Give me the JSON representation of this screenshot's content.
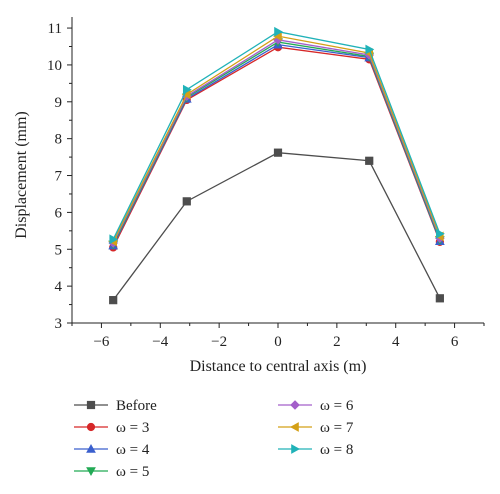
{
  "chart_data": {
    "type": "line",
    "xlabel": "Distance to central axis (m)",
    "ylabel": "Displacement (mm)",
    "xlim": [
      -7,
      7
    ],
    "ylim": [
      3,
      11.3
    ],
    "x_ticks": [
      -6,
      -4,
      -2,
      0,
      2,
      4,
      6
    ],
    "x_tick_labels": [
      "−6",
      "−4",
      "−2",
      "0",
      "2",
      "4",
      "6"
    ],
    "y_ticks": [
      3,
      4,
      5,
      6,
      7,
      8,
      9,
      10,
      11
    ],
    "y_tick_labels": [
      "3",
      "4",
      "5",
      "6",
      "7",
      "8",
      "9",
      "10",
      "11"
    ],
    "grid": false,
    "legend_position": "bottom",
    "x": [
      -5.6,
      -3.1,
      0,
      3.1,
      5.5
    ],
    "series": [
      {
        "name": "Before",
        "color": "#4d4d4d",
        "marker": "square",
        "values": [
          3.62,
          6.3,
          7.62,
          7.4,
          3.67
        ]
      },
      {
        "name": "ω = 3",
        "color": "#d62728",
        "marker": "circle",
        "values": [
          5.05,
          9.05,
          10.48,
          10.15,
          5.2
        ]
      },
      {
        "name": "ω = 4",
        "color": "#3a5fcd",
        "marker": "triangle-up",
        "values": [
          5.1,
          9.08,
          10.55,
          10.2,
          5.22
        ]
      },
      {
        "name": "ω = 5",
        "color": "#22aa55",
        "marker": "triangle-down",
        "values": [
          5.13,
          9.12,
          10.62,
          10.23,
          5.25
        ]
      },
      {
        "name": "ω = 6",
        "color": "#a35fc9",
        "marker": "diamond",
        "values": [
          5.17,
          9.15,
          10.68,
          10.27,
          5.3
        ]
      },
      {
        "name": "ω = 7",
        "color": "#d4a017",
        "marker": "triangle-left",
        "values": [
          5.21,
          9.2,
          10.78,
          10.32,
          5.35
        ]
      },
      {
        "name": "ω = 8",
        "color": "#20b2b8",
        "marker": "triangle-right",
        "values": [
          5.27,
          9.33,
          10.9,
          10.42,
          5.42
        ]
      }
    ]
  }
}
